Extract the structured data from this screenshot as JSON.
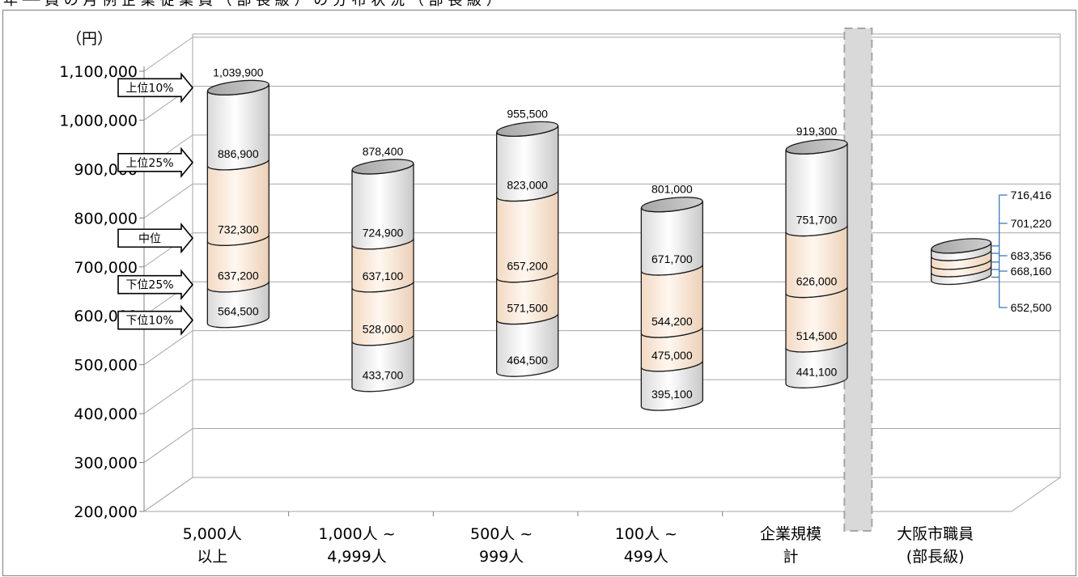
{
  "header_text": "年 ── 員 の 月 例 企 業 従 業 員 （ 部 長 級 ） の 分 布 状 況 （ 部 長 級 ）",
  "chart_data": {
    "type": "box-cylinder",
    "unit_label": "（円）",
    "ylim": [
      200000,
      1100000
    ],
    "yticks": [
      200000,
      300000,
      400000,
      500000,
      600000,
      700000,
      800000,
      900000,
      1000000,
      1100000
    ],
    "ytick_labels": [
      "200,000",
      "300,000",
      "400,000",
      "500,000",
      "600,000",
      "700,000",
      "800,000",
      "900,000",
      "1,000,000",
      "1,100,000"
    ],
    "categories": [
      {
        "line1": "5,000人",
        "line2": "以上"
      },
      {
        "line1": "1,000人 ~",
        "line2": "4,999人"
      },
      {
        "line1": "500人 ~",
        "line2": "999人"
      },
      {
        "line1": "100人 ~",
        "line2": "499人"
      },
      {
        "line1": "企業規模",
        "line2": "計"
      },
      {
        "line1": "大阪市職員",
        "line2": "(部長級)"
      }
    ],
    "percentile_markers": [
      "上位10%",
      "上位25%",
      "中位",
      "下位25%",
      "下位10%"
    ],
    "series": [
      {
        "p10": 564500,
        "p25": 637200,
        "median": 732300,
        "p75": 886900,
        "p90": 1039900,
        "labels": [
          "564,500",
          "637,200",
          "732,300",
          "886,900",
          "1,039,900"
        ]
      },
      {
        "p10": 433700,
        "p25": 528000,
        "median": 637100,
        "p75": 724900,
        "p90": 878400,
        "labels": [
          "433,700",
          "528,000",
          "637,100",
          "724,900",
          "878,400"
        ]
      },
      {
        "p10": 464500,
        "p25": 571500,
        "median": 657200,
        "p75": 823000,
        "p90": 955500,
        "labels": [
          "464,500",
          "571,500",
          "657,200",
          "823,000",
          "955,500"
        ]
      },
      {
        "p10": 395100,
        "p25": 475000,
        "median": 544200,
        "p75": 671700,
        "p90": 801000,
        "labels": [
          "395,100",
          "475,000",
          "544,200",
          "671,700",
          "801,000"
        ]
      },
      {
        "p10": 441100,
        "p25": 514500,
        "median": 626000,
        "p75": 751700,
        "p90": 919300,
        "labels": [
          "441,100",
          "514,500",
          "626,000",
          "751,700",
          "919,300"
        ]
      },
      {
        "p10": 652500,
        "p25": 668160,
        "median": 683356,
        "p75": 701220,
        "p90": 716416,
        "labels": [
          "652,500",
          "668,160",
          "683,356",
          "701,220",
          "716,416"
        ]
      }
    ],
    "colors": {
      "outer_band": "#f2f2f2",
      "inner_band": "#fbe9d9",
      "top_cap": "#bfbfbf",
      "grid": "#a6a6a6",
      "divider_fill": "#d9d9d9",
      "callout_line": "#2e6fb7"
    }
  }
}
